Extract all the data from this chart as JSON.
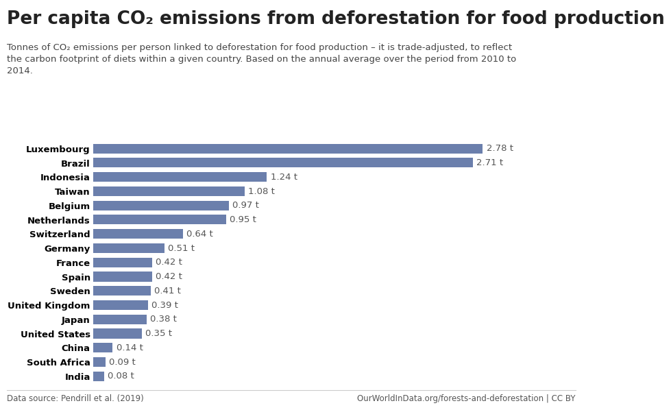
{
  "title": "Per capita CO₂ emissions from deforestation for food production",
  "subtitle": "Tonnes of CO₂ emissions per person linked to deforestation for food production – it is trade-adjusted, to reflect\nthe carbon footprint of diets within a given country. Based on the annual average over the period from 2010 to\n2014.",
  "countries": [
    "Luxembourg",
    "Brazil",
    "Indonesia",
    "Taiwan",
    "Belgium",
    "Netherlands",
    "Switzerland",
    "Germany",
    "France",
    "Spain",
    "Sweden",
    "United Kingdom",
    "Japan",
    "United States",
    "China",
    "South Africa",
    "India"
  ],
  "values": [
    2.78,
    2.71,
    1.24,
    1.08,
    0.97,
    0.95,
    0.64,
    0.51,
    0.42,
    0.42,
    0.41,
    0.39,
    0.38,
    0.35,
    0.14,
    0.09,
    0.08
  ],
  "bar_color": "#6b7fac",
  "background_color": "#ffffff",
  "title_fontsize": 19,
  "subtitle_fontsize": 9.5,
  "label_fontsize": 9.5,
  "value_fontsize": 9.5,
  "data_source": "Data source: Pendrill et al. (2019)",
  "url_text": "OurWorldInData.org/forests-and-deforestation | CC BY",
  "owid_box_color": "#1a2d5a",
  "owid_red": "#c0392b",
  "footer_color": "#555555",
  "xlim": [
    0,
    3.2
  ]
}
